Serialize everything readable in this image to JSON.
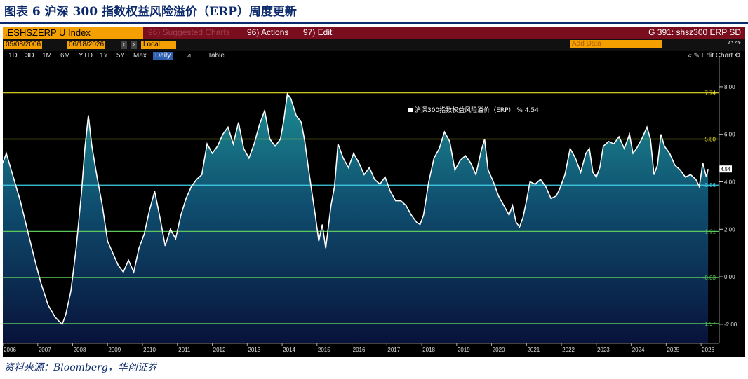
{
  "figure": {
    "title": "图表 6  沪深 300 指数权益风险溢价（ERP）周度更新",
    "source": "资料来源：Bloomberg，华创证券"
  },
  "terminal": {
    "ticker": ".ESHSZERP U Index",
    "menus": {
      "suggested": "96) Suggested Charts",
      "actions": "96) Actions",
      "edit": "97) Edit"
    },
    "chart_id": "G 391: shsz300 ERP SD",
    "start_date": "05/08/2006",
    "end_date": "06/18/2026",
    "currency": "Local CCY",
    "add_data_placeholder": "Add Data",
    "ranges": [
      "1D",
      "3D",
      "1M",
      "6M",
      "YTD",
      "1Y",
      "5Y",
      "Max"
    ],
    "frequency": "Daily",
    "table_label": "Table",
    "edit_chart": "Edit Chart",
    "colors": {
      "bar_red": "#7a0d1e",
      "orange": "#f4a000",
      "line": "#ffffff",
      "mean_line": "#3fd1e8",
      "sd1": "#e8e020",
      "sd2": "#5ac85a"
    }
  },
  "chart_data": {
    "type": "area",
    "legend": {
      "label": "沪深300指数权益风险溢价（ERP） % 4.54",
      "placement": "top-center"
    },
    "last_value": 4.54,
    "ylim": [
      -2.8,
      9.0
    ],
    "y_ticks": [
      "8.00",
      "6.00",
      "4.00",
      "2.00",
      "0.00",
      "-2.00"
    ],
    "y_tick_values": [
      8,
      6,
      4,
      2,
      0,
      -2
    ],
    "x_ticks": [
      "2006",
      "2007",
      "2008",
      "2009",
      "2010",
      "2011",
      "2012",
      "2013",
      "2014",
      "2015",
      "2016",
      "2017",
      "2018",
      "2019",
      "2020",
      "2021",
      "2022",
      "2023",
      "2024",
      "2025",
      "2026"
    ],
    "reference_lines": [
      {
        "label": "7.74",
        "value": 7.74,
        "kind": "+2SD"
      },
      {
        "label": "5.80",
        "value": 5.8,
        "kind": "+1SD"
      },
      {
        "label": "3.86",
        "value": 3.86,
        "kind": "mean"
      },
      {
        "label": "1.91",
        "value": 1.91,
        "kind": "-1SD"
      },
      {
        "label": "-0.03",
        "value": -0.03,
        "kind": "-2SD"
      },
      {
        "label": "-1.97",
        "value": -1.97,
        "kind": "-3SD"
      }
    ],
    "x_range": [
      2006.0,
      2026.5
    ],
    "series": [
      {
        "points": [
          [
            2006.0,
            4.8
          ],
          [
            2006.1,
            5.2
          ],
          [
            2006.3,
            4.2
          ],
          [
            2006.5,
            3.2
          ],
          [
            2006.7,
            2.0
          ],
          [
            2006.9,
            0.8
          ],
          [
            2007.1,
            -0.3
          ],
          [
            2007.3,
            -1.2
          ],
          [
            2007.5,
            -1.7
          ],
          [
            2007.7,
            -2.0
          ],
          [
            2007.8,
            -1.6
          ],
          [
            2007.95,
            -0.6
          ],
          [
            2008.1,
            1.2
          ],
          [
            2008.25,
            3.5
          ],
          [
            2008.35,
            5.4
          ],
          [
            2008.45,
            6.8
          ],
          [
            2008.55,
            5.5
          ],
          [
            2008.7,
            4.2
          ],
          [
            2008.85,
            3.0
          ],
          [
            2009.0,
            1.5
          ],
          [
            2009.15,
            1.0
          ],
          [
            2009.3,
            0.5
          ],
          [
            2009.45,
            0.2
          ],
          [
            2009.6,
            0.7
          ],
          [
            2009.75,
            0.2
          ],
          [
            2009.9,
            1.2
          ],
          [
            2010.05,
            1.8
          ],
          [
            2010.2,
            2.8
          ],
          [
            2010.35,
            3.6
          ],
          [
            2010.5,
            2.5
          ],
          [
            2010.65,
            1.3
          ],
          [
            2010.8,
            2.0
          ],
          [
            2010.95,
            1.6
          ],
          [
            2011.1,
            2.6
          ],
          [
            2011.25,
            3.3
          ],
          [
            2011.4,
            3.8
          ],
          [
            2011.55,
            4.1
          ],
          [
            2011.7,
            4.3
          ],
          [
            2011.85,
            5.6
          ],
          [
            2012.0,
            5.2
          ],
          [
            2012.15,
            5.5
          ],
          [
            2012.3,
            6.0
          ],
          [
            2012.45,
            6.3
          ],
          [
            2012.6,
            5.6
          ],
          [
            2012.75,
            6.5
          ],
          [
            2012.9,
            5.4
          ],
          [
            2013.05,
            5.0
          ],
          [
            2013.2,
            5.6
          ],
          [
            2013.35,
            6.4
          ],
          [
            2013.5,
            7.0
          ],
          [
            2013.65,
            5.8
          ],
          [
            2013.8,
            5.5
          ],
          [
            2013.95,
            5.8
          ],
          [
            2014.05,
            6.6
          ],
          [
            2014.15,
            7.7
          ],
          [
            2014.25,
            7.5
          ],
          [
            2014.4,
            6.8
          ],
          [
            2014.55,
            6.5
          ],
          [
            2014.65,
            5.7
          ],
          [
            2014.75,
            4.6
          ],
          [
            2014.85,
            3.6
          ],
          [
            2014.95,
            2.6
          ],
          [
            2015.05,
            1.5
          ],
          [
            2015.15,
            2.2
          ],
          [
            2015.25,
            1.2
          ],
          [
            2015.4,
            3.0
          ],
          [
            2015.5,
            3.8
          ],
          [
            2015.6,
            5.6
          ],
          [
            2015.75,
            5.0
          ],
          [
            2015.9,
            4.6
          ],
          [
            2016.05,
            5.2
          ],
          [
            2016.2,
            4.8
          ],
          [
            2016.35,
            4.3
          ],
          [
            2016.5,
            4.6
          ],
          [
            2016.65,
            4.1
          ],
          [
            2016.8,
            3.9
          ],
          [
            2016.95,
            4.2
          ],
          [
            2017.1,
            3.6
          ],
          [
            2017.25,
            3.2
          ],
          [
            2017.4,
            3.2
          ],
          [
            2017.55,
            3.0
          ],
          [
            2017.7,
            2.6
          ],
          [
            2017.85,
            2.3
          ],
          [
            2017.95,
            2.2
          ],
          [
            2018.05,
            2.6
          ],
          [
            2018.2,
            4.0
          ],
          [
            2018.35,
            5.0
          ],
          [
            2018.5,
            5.4
          ],
          [
            2018.65,
            6.1
          ],
          [
            2018.8,
            5.7
          ],
          [
            2018.95,
            4.5
          ],
          [
            2019.1,
            4.9
          ],
          [
            2019.25,
            5.1
          ],
          [
            2019.4,
            4.8
          ],
          [
            2019.55,
            4.3
          ],
          [
            2019.7,
            5.3
          ],
          [
            2019.8,
            5.8
          ],
          [
            2019.9,
            4.5
          ],
          [
            2020.05,
            4.0
          ],
          [
            2020.2,
            3.4
          ],
          [
            2020.35,
            3.0
          ],
          [
            2020.5,
            2.6
          ],
          [
            2020.6,
            3.0
          ],
          [
            2020.7,
            2.3
          ],
          [
            2020.8,
            2.1
          ],
          [
            2020.9,
            2.5
          ],
          [
            2021.0,
            3.2
          ],
          [
            2021.1,
            4.0
          ],
          [
            2021.25,
            3.9
          ],
          [
            2021.4,
            4.1
          ],
          [
            2021.55,
            3.8
          ],
          [
            2021.7,
            3.3
          ],
          [
            2021.85,
            3.4
          ],
          [
            2021.95,
            3.7
          ],
          [
            2022.1,
            4.3
          ],
          [
            2022.25,
            5.4
          ],
          [
            2022.4,
            5.0
          ],
          [
            2022.55,
            4.4
          ],
          [
            2022.7,
            5.2
          ],
          [
            2022.8,
            5.4
          ],
          [
            2022.9,
            4.4
          ],
          [
            2023.0,
            4.2
          ],
          [
            2023.1,
            4.6
          ],
          [
            2023.2,
            5.5
          ],
          [
            2023.35,
            5.7
          ],
          [
            2023.5,
            5.6
          ],
          [
            2023.65,
            5.9
          ],
          [
            2023.8,
            5.4
          ],
          [
            2023.95,
            6.0
          ],
          [
            2024.05,
            5.2
          ],
          [
            2024.15,
            5.4
          ],
          [
            2024.3,
            5.8
          ],
          [
            2024.45,
            6.3
          ],
          [
            2024.55,
            5.8
          ],
          [
            2024.65,
            4.3
          ],
          [
            2024.75,
            4.7
          ],
          [
            2024.85,
            6.0
          ],
          [
            2024.95,
            5.5
          ],
          [
            2025.1,
            5.2
          ],
          [
            2025.25,
            4.7
          ],
          [
            2025.4,
            4.5
          ],
          [
            2025.55,
            4.2
          ],
          [
            2025.7,
            4.3
          ],
          [
            2025.85,
            4.1
          ],
          [
            2025.95,
            3.8
          ],
          [
            2026.05,
            4.8
          ],
          [
            2026.15,
            4.2
          ],
          [
            2026.2,
            4.54
          ]
        ]
      }
    ]
  }
}
